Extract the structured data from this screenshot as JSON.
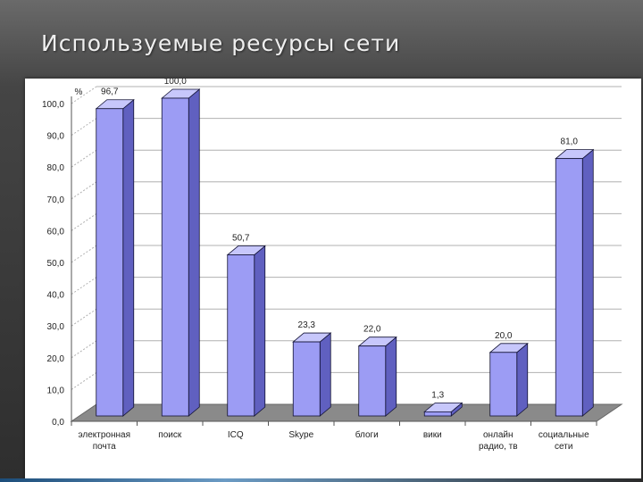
{
  "slide": {
    "title": "Используемые ресурсы сети"
  },
  "colors": {
    "bar_front": "#9c9cf4",
    "bar_top": "#c7c7fb",
    "bar_side": "#6060c0",
    "bar_outline": "#111133",
    "floor": "#8a8a8a",
    "gridline": "#b0b0b0"
  },
  "chart_data": {
    "type": "bar",
    "style": "3d-column",
    "title": "",
    "xlabel": "",
    "ylabel": "%",
    "ylim": [
      0,
      100
    ],
    "yticks": [
      "0,0",
      "10,0",
      "20,0",
      "30,0",
      "40,0",
      "50,0",
      "60,0",
      "70,0",
      "80,0",
      "90,0",
      "100,0"
    ],
    "grid": true,
    "legend": "none",
    "categories": [
      "электронная почта",
      "поиск",
      "ICQ",
      "Skype",
      "блоги",
      "вики",
      "онлайн радио, тв",
      "социальные сети"
    ],
    "category_lines": [
      [
        "электронная",
        "почта"
      ],
      [
        "поиск"
      ],
      [
        "ICQ"
      ],
      [
        "Skype"
      ],
      [
        "блоги"
      ],
      [
        "вики"
      ],
      [
        "онлайн",
        "радио, тв"
      ],
      [
        "социальные",
        "сети"
      ]
    ],
    "values": [
      96.7,
      100.0,
      50.7,
      23.3,
      22.0,
      1.3,
      20.0,
      81.0
    ],
    "value_labels": [
      "96,7",
      "100,0",
      "50,7",
      "23,3",
      "22,0",
      "1,3",
      "20,0",
      "81,0"
    ]
  }
}
